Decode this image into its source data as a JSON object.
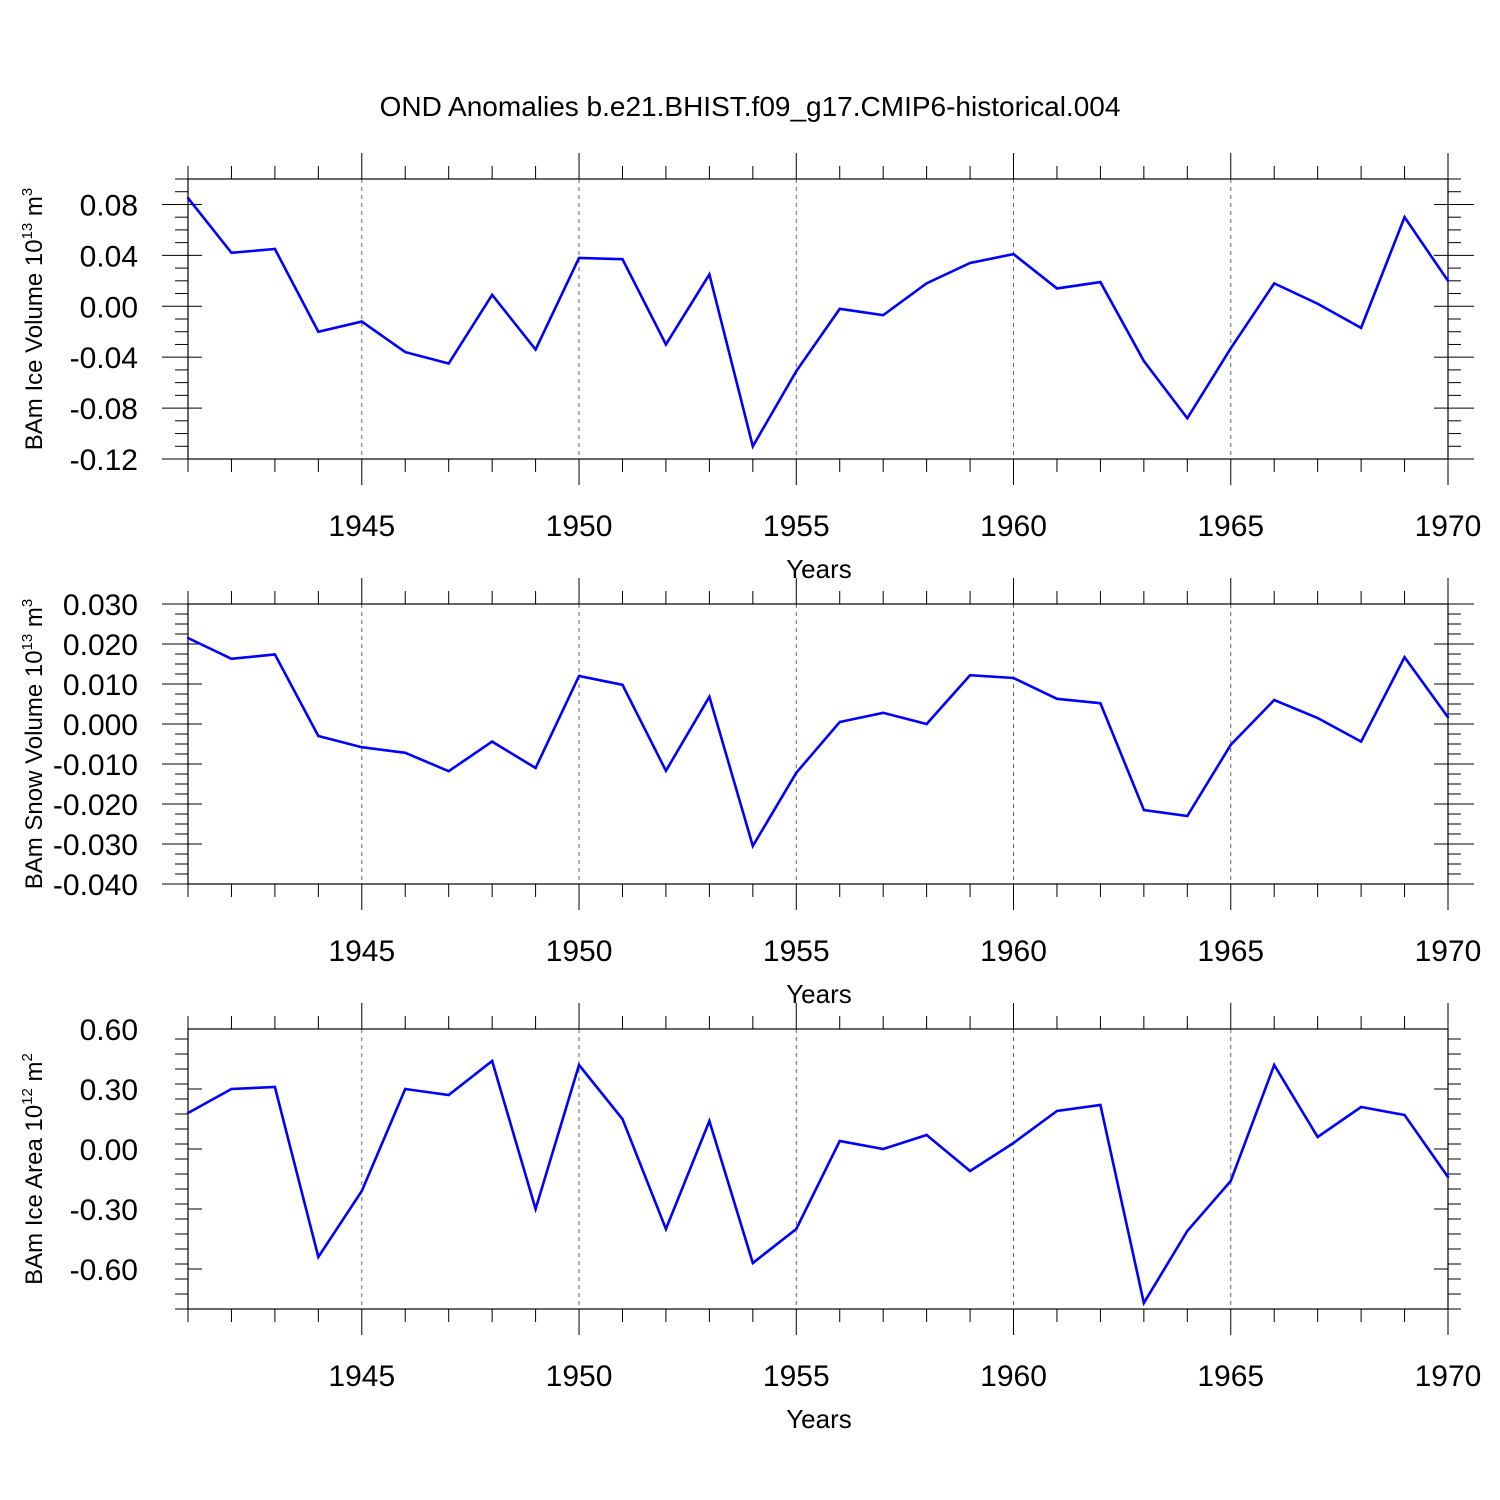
{
  "title": "OND Anomalies b.e21.BHIST.f09_g17.CMIP6-historical.004",
  "colors": {
    "line": "#0000ff",
    "axis": "#000000",
    "grid": "#666666"
  },
  "chart_data": [
    {
      "type": "line",
      "ylabel_main": "BAm Ice Volume 10",
      "ylabel_exp": "13",
      "ylabel_unit": " m",
      "ylabel_unit_exp": "3",
      "xlabel": "Years",
      "xlim": [
        1941,
        1970
      ],
      "ylim": [
        -0.12,
        0.1
      ],
      "yticks": [
        -0.12,
        -0.08,
        -0.04,
        0.0,
        0.04,
        0.08
      ],
      "ytick_labels": [
        "-0.12",
        "-0.08",
        "-0.04",
        "0.00",
        "0.04",
        "0.08"
      ],
      "xticks": [
        1945,
        1950,
        1955,
        1960,
        1965,
        1970
      ],
      "xtick_labels": [
        "1945",
        "1950",
        "1955",
        "1960",
        "1965",
        "1970"
      ],
      "x": [
        1941,
        1942,
        1943,
        1944,
        1945,
        1946,
        1947,
        1948,
        1949,
        1950,
        1951,
        1952,
        1953,
        1954,
        1955,
        1956,
        1957,
        1958,
        1959,
        1960,
        1961,
        1962,
        1963,
        1964,
        1965,
        1966,
        1967,
        1968,
        1969,
        1970
      ],
      "series": [
        {
          "name": "BAm Ice Volume",
          "values": [
            0.085,
            0.042,
            0.045,
            -0.02,
            -0.012,
            -0.036,
            -0.045,
            0.009,
            -0.034,
            0.038,
            0.037,
            -0.03,
            0.025,
            -0.11,
            -0.051,
            -0.002,
            -0.007,
            0.018,
            0.034,
            0.041,
            0.014,
            0.019,
            -0.043,
            -0.088,
            -0.033,
            0.018,
            0.002,
            -0.017,
            0.07,
            0.02
          ]
        }
      ]
    },
    {
      "type": "line",
      "ylabel_main": "BAm Snow Volume 10",
      "ylabel_exp": "13",
      "ylabel_unit": " m",
      "ylabel_unit_exp": "3",
      "xlabel": "Years",
      "xlim": [
        1941,
        1970
      ],
      "ylim": [
        -0.04,
        0.03
      ],
      "yticks": [
        -0.04,
        -0.03,
        -0.02,
        -0.01,
        0.0,
        0.01,
        0.02,
        0.03
      ],
      "ytick_labels": [
        "-0.040",
        "-0.030",
        "-0.020",
        "-0.010",
        "0.000",
        "0.010",
        "0.020",
        "0.030"
      ],
      "xticks": [
        1945,
        1950,
        1955,
        1960,
        1965,
        1970
      ],
      "xtick_labels": [
        "1945",
        "1950",
        "1955",
        "1960",
        "1965",
        "1970"
      ],
      "x": [
        1941,
        1942,
        1943,
        1944,
        1945,
        1946,
        1947,
        1948,
        1949,
        1950,
        1951,
        1952,
        1953,
        1954,
        1955,
        1956,
        1957,
        1958,
        1959,
        1960,
        1961,
        1962,
        1963,
        1964,
        1965,
        1966,
        1967,
        1968,
        1969,
        1970
      ],
      "series": [
        {
          "name": "BAm Snow Volume",
          "values": [
            0.0215,
            0.0163,
            0.0174,
            -0.003,
            -0.0058,
            -0.0072,
            -0.0118,
            -0.0044,
            -0.011,
            0.012,
            0.0098,
            -0.0117,
            0.0068,
            -0.0305,
            -0.0122,
            0.0005,
            0.0028,
            0.0,
            0.0122,
            0.0115,
            0.0063,
            0.0052,
            -0.0215,
            -0.023,
            -0.0052,
            0.006,
            0.0015,
            -0.0044,
            0.0167,
            0.0017
          ]
        }
      ]
    },
    {
      "type": "line",
      "ylabel_main": "BAm Ice Area 10",
      "ylabel_exp": "12",
      "ylabel_unit": " m",
      "ylabel_unit_exp": "2",
      "xlabel": "Years",
      "xlim": [
        1941,
        1970
      ],
      "ylim": [
        -0.8,
        0.6
      ],
      "yticks": [
        -0.6,
        -0.3,
        0.0,
        0.3,
        0.6
      ],
      "ytick_labels": [
        "-0.60",
        "-0.30",
        "0.00",
        "0.30",
        "0.60"
      ],
      "xticks": [
        1945,
        1950,
        1955,
        1960,
        1965,
        1970
      ],
      "xtick_labels": [
        "1945",
        "1950",
        "1955",
        "1960",
        "1965",
        "1970"
      ],
      "x": [
        1941,
        1942,
        1943,
        1944,
        1945,
        1946,
        1947,
        1948,
        1949,
        1950,
        1951,
        1952,
        1953,
        1954,
        1955,
        1956,
        1957,
        1958,
        1959,
        1960,
        1961,
        1962,
        1963,
        1964,
        1965,
        1966,
        1967,
        1968,
        1969,
        1970
      ],
      "series": [
        {
          "name": "BAm Ice Area",
          "values": [
            0.18,
            0.3,
            0.31,
            -0.54,
            -0.21,
            0.3,
            0.27,
            0.44,
            -0.3,
            0.42,
            0.15,
            -0.4,
            0.14,
            -0.57,
            -0.4,
            0.04,
            0.0,
            0.07,
            -0.11,
            0.03,
            0.19,
            0.22,
            -0.77,
            -0.41,
            -0.16,
            0.42,
            0.06,
            0.21,
            0.17,
            -0.14
          ]
        }
      ]
    }
  ]
}
